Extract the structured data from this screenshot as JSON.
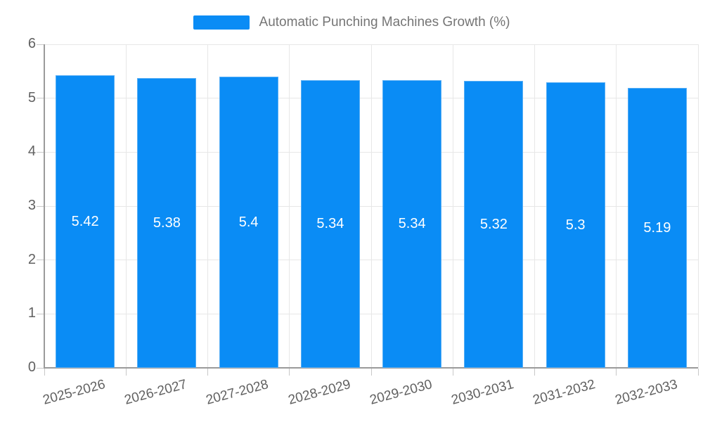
{
  "legend": {
    "label": "Automatic Punching Machines Growth (%)"
  },
  "chart_data": {
    "type": "bar",
    "title": "Automatic Punching Machines Growth (%)",
    "categories": [
      "2025-2026",
      "2026-2027",
      "2027-2028",
      "2028-2029",
      "2029-2030",
      "2030-2031",
      "2031-2032",
      "2032-2033"
    ],
    "values": [
      5.42,
      5.38,
      5.4,
      5.34,
      5.34,
      5.32,
      5.3,
      5.19
    ],
    "value_labels": [
      "5.42",
      "5.38",
      "5.4",
      "5.34",
      "5.34",
      "5.32",
      "5.3",
      "5.19"
    ],
    "xlabel": "",
    "ylabel": "",
    "ylim": [
      0,
      6
    ],
    "yticks": [
      0,
      1,
      2,
      3,
      4,
      5,
      6
    ],
    "grid": true,
    "legend_position": "top",
    "x_tick_rotation_deg": -15
  },
  "colors": {
    "bar_fill": "#0A8CF5",
    "bar_border": "#57aef5",
    "bar_value_text": "#ffffff",
    "axis_line": "#9a9a9a",
    "grid_line": "#e7e7e7",
    "tick_mark": "#c8c8c8",
    "axis_tick_text": "#616161",
    "legend_text": "#757575",
    "background": "#ffffff"
  }
}
